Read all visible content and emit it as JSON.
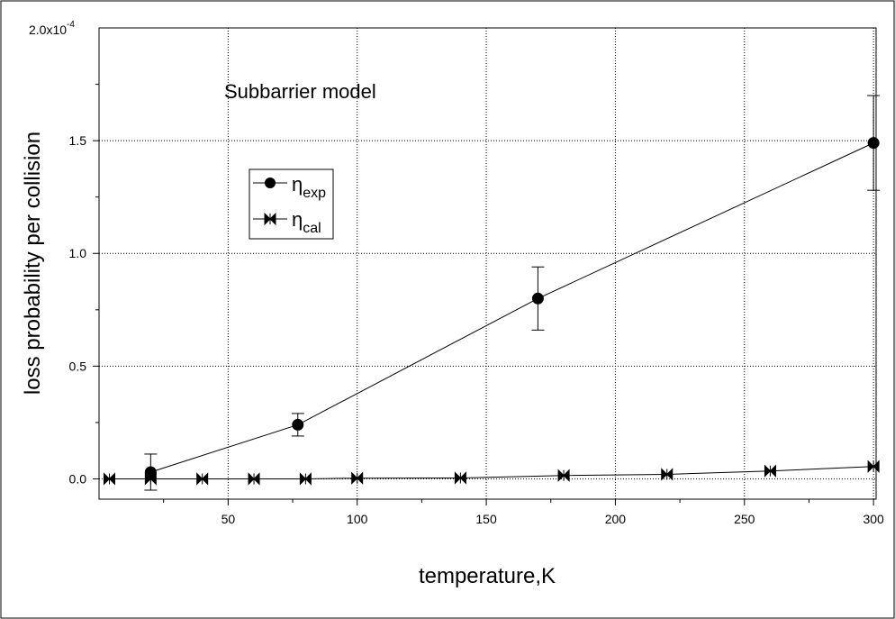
{
  "chart_data": {
    "type": "scatter",
    "annotation": "Subbarrier model",
    "xlabel": "temperature,K",
    "ylabel": "loss probability per collision",
    "xlim": [
      0,
      301
    ],
    "ylim": [
      -0.09,
      2.0
    ],
    "y_multiplier_label": "2.0x10",
    "y_multiplier_exp": "-4",
    "x_ticks": [
      50,
      100,
      150,
      200,
      250,
      300
    ],
    "x_tick_labels": [
      "50",
      "100",
      "150",
      "200",
      "250",
      "300"
    ],
    "y_ticks": [
      0.0,
      0.5,
      1.0,
      1.5
    ],
    "y_tick_labels": [
      "0.0",
      "0.5",
      "1.0",
      "1.5"
    ],
    "grid": true,
    "legend_position": "upper-left",
    "series": [
      {
        "name": "η",
        "name_sub": "exp",
        "marker": "circle",
        "x": [
          20,
          77,
          170,
          300
        ],
        "y": [
          0.03,
          0.24,
          0.8,
          1.49
        ],
        "yerr": [
          0.08,
          0.05,
          0.14,
          0.21
        ]
      },
      {
        "name": "η",
        "name_sub": "cal",
        "marker": "bowtie",
        "x": [
          4,
          20,
          40,
          60,
          80,
          100,
          140,
          180,
          220,
          260,
          300
        ],
        "y": [
          0.0,
          0.0,
          0.0,
          0.0,
          0.0,
          0.003,
          0.004,
          0.015,
          0.02,
          0.035,
          0.055
        ]
      }
    ]
  }
}
